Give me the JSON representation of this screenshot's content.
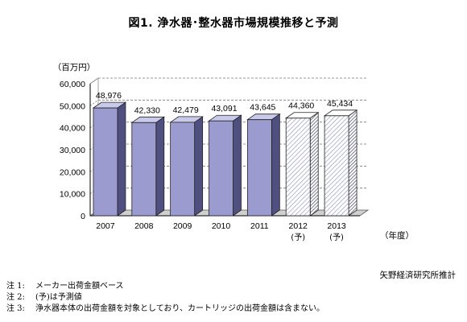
{
  "chart_data": {
    "type": "bar",
    "title": "図1. 浄水器･整水器市場規模推移と予測",
    "ylabel": "（百万円）",
    "xlabel": "（年度）",
    "ylim": [
      0,
      60000
    ],
    "yticks": [
      "0",
      "10,000",
      "20,000",
      "30,000",
      "40,000",
      "50,000",
      "60,000"
    ],
    "ytick_values": [
      0,
      10000,
      20000,
      30000,
      40000,
      50000,
      60000
    ],
    "grid": true,
    "categories": [
      "2007",
      "2008",
      "2009",
      "2010",
      "2011",
      "2012",
      "2013"
    ],
    "category_sub": [
      "",
      "",
      "",
      "",
      "",
      "(予)",
      "(予)"
    ],
    "values": [
      48976,
      42330,
      42479,
      43091,
      43645,
      44360,
      45434
    ],
    "value_labels": [
      "48,976",
      "42,330",
      "42,479",
      "43,091",
      "43,645",
      "44,360",
      "45,434"
    ],
    "forecast": [
      false,
      false,
      false,
      false,
      false,
      true,
      true
    ],
    "colors": {
      "bar_front": "#9b9bd0",
      "bar_side": "#505080",
      "bar_top": "#c9c9ea",
      "forecast_stripe": "#a0a0c8",
      "forecast_side": "#6a6a8a",
      "floor": "#d0d0d0"
    }
  },
  "source": "矢野経済研究所推計",
  "notes": [
    {
      "label": "注 1:",
      "text": "メーカー出荷金額ベース"
    },
    {
      "label": "注 2:",
      "text": "(予)は予測値"
    },
    {
      "label": "注 3:",
      "text": "浄水器本体の出荷金額を対象としており、カートリッジの出荷金額は含まない。"
    }
  ]
}
